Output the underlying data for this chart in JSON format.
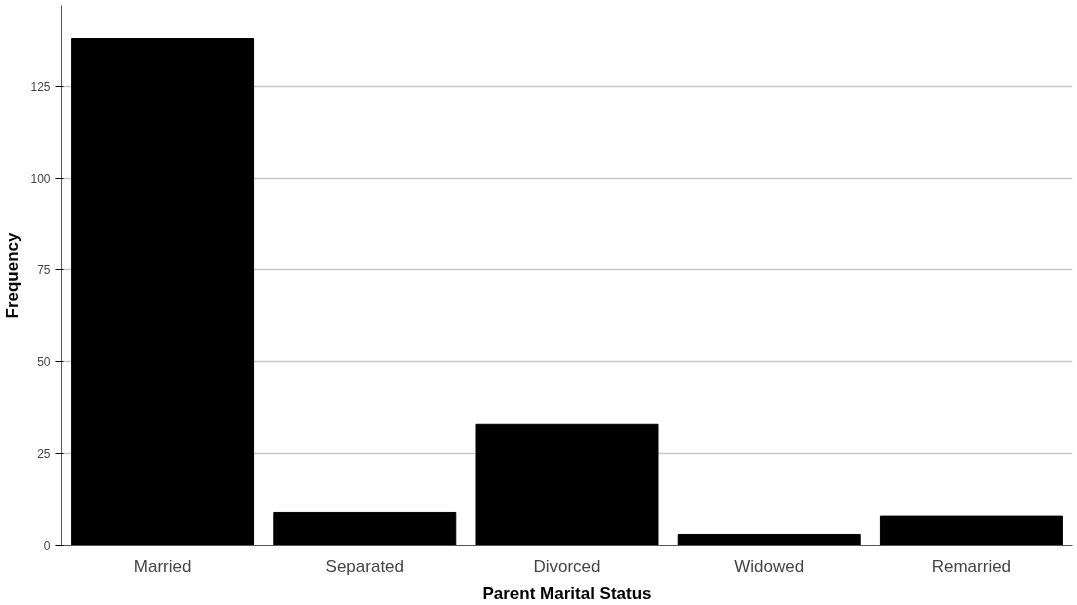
{
  "chart_data": {
    "type": "bar",
    "xlabel": "Parent Marital Status",
    "ylabel": "Frequency",
    "categories": [
      "Married",
      "Separated",
      "Divorced",
      "Widowed",
      "Remarried"
    ],
    "values": [
      138,
      9,
      33,
      3,
      8
    ],
    "color": "#000000",
    "ylim": [
      0,
      147
    ],
    "yticks": [
      0,
      25,
      50,
      75,
      100,
      125
    ],
    "grid": "y"
  }
}
